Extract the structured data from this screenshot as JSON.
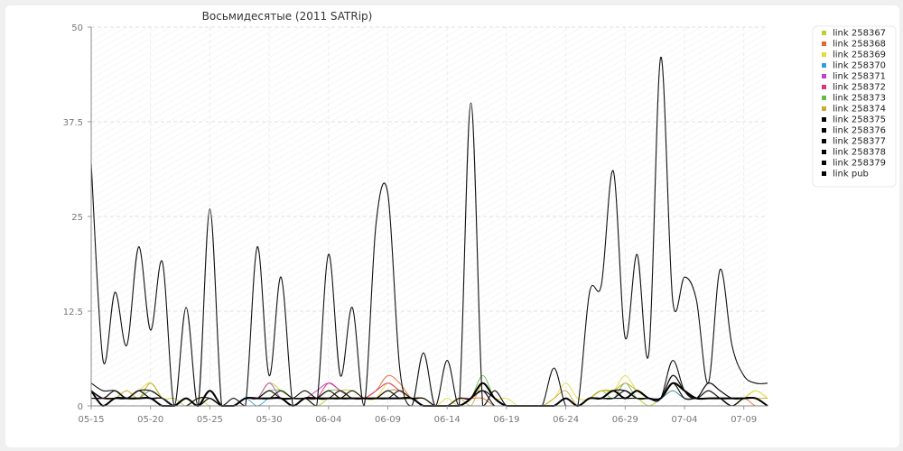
{
  "chart_data": {
    "type": "line",
    "title": "Восьмидесятые (2011 SATRip)",
    "xlabel": "",
    "ylabel": "",
    "ylim": [
      0,
      50
    ],
    "y_ticks": [
      "0",
      "12.5",
      "25",
      "37.5",
      "50"
    ],
    "x_tick_labels": [
      "05-15",
      "05-20",
      "05-25",
      "05-30",
      "06-04",
      "06-09",
      "06-14",
      "06-19",
      "06-24",
      "06-29",
      "07-04",
      "07-09"
    ],
    "x": [
      "05-15",
      "05-16",
      "05-17",
      "05-18",
      "05-19",
      "05-20",
      "05-21",
      "05-22",
      "05-23",
      "05-24",
      "05-25",
      "05-26",
      "05-27",
      "05-28",
      "05-29",
      "05-30",
      "05-31",
      "06-01",
      "06-02",
      "06-03",
      "06-04",
      "06-05",
      "06-06",
      "06-07",
      "06-08",
      "06-09",
      "06-10",
      "06-11",
      "06-12",
      "06-13",
      "06-14",
      "06-15",
      "06-16",
      "06-17",
      "06-18",
      "06-19",
      "06-20",
      "06-21",
      "06-22",
      "06-23",
      "06-24",
      "06-25",
      "06-26",
      "06-27",
      "06-28",
      "06-29",
      "06-30",
      "07-01",
      "07-02",
      "07-03",
      "07-04",
      "07-05",
      "07-06",
      "07-07",
      "07-08",
      "07-09",
      "07-10",
      "07-11"
    ],
    "grid": true,
    "legend_position": "top-right",
    "series": [
      {
        "name": "link 258367",
        "color": "#bcd22b",
        "values": [
          2,
          1,
          1,
          2,
          1,
          3,
          1,
          1,
          0,
          1,
          1,
          0,
          0,
          1,
          1,
          3,
          2,
          1,
          1,
          0,
          1,
          2,
          2,
          1,
          1,
          2,
          1,
          1,
          0,
          0,
          0,
          0,
          1,
          3,
          1,
          0,
          0,
          0,
          0,
          0,
          1,
          0,
          1,
          2,
          2,
          1,
          1,
          0,
          1,
          2,
          1,
          1,
          1,
          1,
          0,
          1,
          2,
          1
        ]
      },
      {
        "name": "link 258368",
        "color": "#e2692a",
        "values": [
          2,
          1,
          1,
          1,
          1,
          1,
          1,
          0,
          0,
          0,
          1,
          0,
          0,
          1,
          1,
          1,
          1,
          1,
          1,
          1,
          2,
          1,
          1,
          1,
          2,
          4,
          3,
          1,
          1,
          0,
          0,
          1,
          1,
          1,
          0,
          0,
          0,
          0,
          0,
          0,
          1,
          0,
          1,
          1,
          1,
          2,
          1,
          1,
          1,
          2,
          1,
          1,
          1,
          1,
          0,
          1,
          0,
          0
        ]
      },
      {
        "name": "link 258369",
        "color": "#e2db3a",
        "values": [
          1,
          1,
          2,
          1,
          2,
          3,
          1,
          0,
          0,
          1,
          0,
          0,
          0,
          1,
          1,
          1,
          2,
          1,
          1,
          1,
          2,
          1,
          2,
          1,
          1,
          3,
          2,
          1,
          1,
          0,
          1,
          0,
          1,
          3,
          1,
          1,
          0,
          0,
          0,
          1,
          3,
          1,
          1,
          2,
          2,
          4,
          2,
          1,
          1,
          4,
          2,
          1,
          2,
          1,
          1,
          1,
          2,
          1
        ]
      },
      {
        "name": "link 258370",
        "color": "#2ea0d0",
        "values": [
          1,
          1,
          1,
          1,
          1,
          1,
          1,
          0,
          0,
          0,
          1,
          0,
          0,
          1,
          0,
          1,
          1,
          1,
          1,
          1,
          1,
          1,
          1,
          1,
          1,
          1,
          1,
          1,
          0,
          0,
          0,
          0,
          1,
          2,
          0,
          0,
          0,
          0,
          0,
          0,
          1,
          0,
          1,
          1,
          1,
          2,
          1,
          1,
          1,
          2,
          1,
          1,
          1,
          1,
          0,
          1,
          1,
          0
        ]
      },
      {
        "name": "link 258371",
        "color": "#bb44cc",
        "values": [
          1,
          1,
          2,
          1,
          1,
          2,
          1,
          0,
          0,
          1,
          1,
          0,
          0,
          1,
          1,
          3,
          1,
          1,
          1,
          2,
          3,
          2,
          1,
          1,
          1,
          2,
          2,
          1,
          1,
          0,
          0,
          1,
          1,
          2,
          1,
          0,
          0,
          0,
          0,
          0,
          1,
          0,
          1,
          1,
          2,
          2,
          1,
          1,
          1,
          3,
          2,
          1,
          2,
          1,
          1,
          1,
          1,
          0
        ]
      },
      {
        "name": "link 258372",
        "color": "#dd3377",
        "values": [
          1,
          1,
          1,
          1,
          2,
          1,
          1,
          0,
          0,
          1,
          1,
          0,
          0,
          1,
          1,
          2,
          1,
          1,
          1,
          1,
          3,
          2,
          1,
          1,
          2,
          3,
          2,
          1,
          0,
          0,
          0,
          0,
          1,
          2,
          1,
          0,
          0,
          0,
          0,
          0,
          1,
          0,
          1,
          1,
          1,
          2,
          1,
          1,
          1,
          3,
          1,
          1,
          1,
          1,
          0,
          1,
          1,
          0
        ]
      },
      {
        "name": "link 258373",
        "color": "#66bb44",
        "values": [
          2,
          1,
          2,
          1,
          1,
          2,
          1,
          0,
          0,
          1,
          1,
          0,
          0,
          1,
          1,
          2,
          2,
          1,
          1,
          1,
          2,
          2,
          1,
          1,
          1,
          2,
          1,
          1,
          1,
          0,
          0,
          0,
          1,
          4,
          1,
          0,
          0,
          0,
          0,
          0,
          1,
          0,
          1,
          2,
          1,
          3,
          1,
          1,
          1,
          4,
          2,
          1,
          1,
          1,
          0,
          1,
          1,
          0
        ]
      },
      {
        "name": "link 258374",
        "color": "#ccaa33",
        "values": [
          2,
          1,
          1,
          2,
          1,
          3,
          1,
          0,
          0,
          1,
          1,
          0,
          0,
          1,
          1,
          2,
          1,
          1,
          2,
          1,
          2,
          1,
          1,
          1,
          1,
          2,
          2,
          1,
          1,
          0,
          0,
          1,
          0,
          3,
          1,
          0,
          0,
          0,
          0,
          1,
          2,
          0,
          1,
          2,
          2,
          3,
          2,
          1,
          1,
          3,
          2,
          1,
          2,
          1,
          1,
          1,
          1,
          1
        ]
      },
      {
        "name": "link 258375",
        "color": "#111111",
        "values": [
          32,
          6,
          15,
          8,
          21,
          10,
          19,
          0,
          13,
          0,
          26,
          0,
          1,
          0,
          21,
          4,
          17,
          0,
          1,
          0,
          20,
          4,
          13,
          0,
          24,
          28,
          5,
          0,
          7,
          0,
          6,
          0,
          40,
          0,
          2,
          0,
          0,
          0,
          0,
          5,
          0,
          0,
          15,
          16,
          31,
          9,
          20,
          7,
          46,
          14,
          17,
          14,
          3,
          18,
          8,
          4,
          3,
          3
        ]
      },
      {
        "name": "link 258376",
        "color": "#111111",
        "values": [
          3,
          2,
          2,
          1,
          2,
          1,
          1,
          0,
          1,
          0,
          2,
          0,
          0,
          1,
          1,
          2,
          1,
          1,
          2,
          1,
          1,
          2,
          1,
          1,
          1,
          1,
          2,
          1,
          1,
          0,
          0,
          1,
          1,
          3,
          1,
          0,
          0,
          0,
          0,
          0,
          1,
          0,
          1,
          1,
          2,
          1,
          2,
          1,
          1,
          6,
          2,
          1,
          3,
          2,
          1,
          1,
          1,
          0
        ]
      },
      {
        "name": "link 258377",
        "color": "#111111",
        "values": [
          2,
          1,
          1,
          1,
          2,
          2,
          1,
          0,
          1,
          0,
          1,
          0,
          0,
          1,
          1,
          1,
          1,
          1,
          1,
          1,
          2,
          1,
          1,
          1,
          1,
          1,
          1,
          1,
          0,
          0,
          0,
          0,
          1,
          2,
          1,
          0,
          0,
          0,
          0,
          0,
          1,
          0,
          1,
          1,
          1,
          2,
          1,
          1,
          1,
          4,
          2,
          1,
          2,
          1,
          0,
          1,
          1,
          0
        ]
      },
      {
        "name": "link 258378",
        "color": "#111111",
        "values": [
          1,
          1,
          1,
          1,
          1,
          1,
          1,
          0,
          0,
          1,
          1,
          0,
          0,
          1,
          1,
          1,
          1,
          1,
          1,
          1,
          1,
          1,
          1,
          1,
          1,
          2,
          1,
          1,
          0,
          0,
          0,
          0,
          1,
          2,
          0,
          0,
          0,
          0,
          0,
          0,
          1,
          0,
          1,
          1,
          1,
          1,
          1,
          1,
          1,
          3,
          1,
          1,
          1,
          1,
          0,
          1,
          1,
          0
        ]
      },
      {
        "name": "link 258379",
        "color": "#111111",
        "values": [
          2,
          1,
          2,
          1,
          2,
          1,
          1,
          0,
          1,
          0,
          2,
          0,
          0,
          1,
          1,
          1,
          2,
          1,
          1,
          1,
          1,
          1,
          2,
          1,
          1,
          1,
          1,
          1,
          1,
          0,
          0,
          0,
          1,
          3,
          1,
          0,
          0,
          0,
          0,
          0,
          1,
          0,
          1,
          1,
          2,
          2,
          1,
          1,
          1,
          4,
          2,
          1,
          3,
          2,
          1,
          1,
          1,
          0
        ]
      },
      {
        "name": "link pub",
        "color": "#000000",
        "bold": true,
        "values": [
          2,
          0,
          1,
          1,
          1,
          1,
          0,
          0,
          1,
          0,
          2,
          0,
          0,
          1,
          1,
          1,
          1,
          0,
          1,
          1,
          1,
          1,
          1,
          1,
          1,
          1,
          1,
          1,
          0,
          0,
          0,
          0,
          1,
          3,
          1,
          0,
          0,
          0,
          0,
          0,
          1,
          0,
          1,
          1,
          2,
          1,
          2,
          1,
          1,
          3,
          2,
          1,
          1,
          1,
          1,
          1,
          1,
          0
        ]
      }
    ]
  }
}
